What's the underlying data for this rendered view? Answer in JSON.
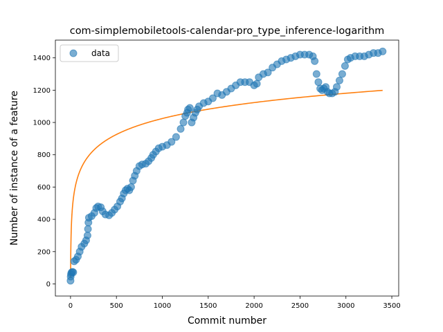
{
  "chart_data": {
    "type": "scatter",
    "title": "com-simplemobiletools-calendar-pro_type_inference-logarithm",
    "xlabel": "Commit number",
    "ylabel": "Number of instance of a feature",
    "xlim": [
      -165,
      3575
    ],
    "ylim": [
      -75,
      1510
    ],
    "xticks": [
      0,
      500,
      1000,
      1500,
      2000,
      2500,
      3000,
      3500
    ],
    "yticks": [
      0,
      200,
      400,
      600,
      800,
      1000,
      1200,
      1400
    ],
    "grid": false,
    "legend": {
      "placement": "top-left",
      "entries": [
        "data"
      ]
    },
    "colors": {
      "data": "#1f77b4",
      "fit": "#ff7f0e"
    },
    "series": [
      {
        "name": "data",
        "kind": "scatter",
        "points": [
          [
            0,
            20
          ],
          [
            2,
            45
          ],
          [
            5,
            60
          ],
          [
            10,
            70
          ],
          [
            20,
            75
          ],
          [
            30,
            72
          ],
          [
            40,
            140
          ],
          [
            60,
            150
          ],
          [
            80,
            170
          ],
          [
            100,
            200
          ],
          [
            120,
            230
          ],
          [
            150,
            250
          ],
          [
            170,
            270
          ],
          [
            185,
            300
          ],
          [
            190,
            340
          ],
          [
            195,
            380
          ],
          [
            200,
            410
          ],
          [
            230,
            420
          ],
          [
            260,
            440
          ],
          [
            280,
            470
          ],
          [
            300,
            480
          ],
          [
            330,
            475
          ],
          [
            350,
            450
          ],
          [
            380,
            430
          ],
          [
            420,
            425
          ],
          [
            450,
            440
          ],
          [
            480,
            460
          ],
          [
            510,
            480
          ],
          [
            540,
            510
          ],
          [
            560,
            530
          ],
          [
            580,
            560
          ],
          [
            600,
            580
          ],
          [
            620,
            590
          ],
          [
            640,
            580
          ],
          [
            660,
            600
          ],
          [
            680,
            640
          ],
          [
            700,
            670
          ],
          [
            720,
            700
          ],
          [
            750,
            730
          ],
          [
            780,
            740
          ],
          [
            820,
            745
          ],
          [
            850,
            760
          ],
          [
            880,
            780
          ],
          [
            900,
            800
          ],
          [
            930,
            820
          ],
          [
            960,
            840
          ],
          [
            1000,
            850
          ],
          [
            1050,
            860
          ],
          [
            1100,
            880
          ],
          [
            1150,
            910
          ],
          [
            1200,
            960
          ],
          [
            1230,
            1000
          ],
          [
            1250,
            1040
          ],
          [
            1270,
            1060
          ],
          [
            1280,
            1080
          ],
          [
            1300,
            1090
          ],
          [
            1320,
            1000
          ],
          [
            1340,
            1030
          ],
          [
            1360,
            1060
          ],
          [
            1380,
            1080
          ],
          [
            1400,
            1100
          ],
          [
            1450,
            1120
          ],
          [
            1500,
            1130
          ],
          [
            1550,
            1150
          ],
          [
            1600,
            1180
          ],
          [
            1650,
            1170
          ],
          [
            1700,
            1190
          ],
          [
            1750,
            1210
          ],
          [
            1800,
            1230
          ],
          [
            1850,
            1250
          ],
          [
            1900,
            1250
          ],
          [
            1950,
            1250
          ],
          [
            2000,
            1230
          ],
          [
            2030,
            1240
          ],
          [
            2050,
            1280
          ],
          [
            2100,
            1300
          ],
          [
            2150,
            1310
          ],
          [
            2200,
            1340
          ],
          [
            2250,
            1360
          ],
          [
            2300,
            1380
          ],
          [
            2350,
            1390
          ],
          [
            2400,
            1400
          ],
          [
            2450,
            1410
          ],
          [
            2500,
            1420
          ],
          [
            2550,
            1420
          ],
          [
            2600,
            1420
          ],
          [
            2640,
            1410
          ],
          [
            2660,
            1380
          ],
          [
            2680,
            1300
          ],
          [
            2700,
            1250
          ],
          [
            2720,
            1210
          ],
          [
            2740,
            1200
          ],
          [
            2760,
            1210
          ],
          [
            2780,
            1220
          ],
          [
            2800,
            1190
          ],
          [
            2820,
            1180
          ],
          [
            2850,
            1180
          ],
          [
            2880,
            1190
          ],
          [
            2900,
            1220
          ],
          [
            2930,
            1260
          ],
          [
            2960,
            1300
          ],
          [
            2990,
            1350
          ],
          [
            3020,
            1390
          ],
          [
            3050,
            1400
          ],
          [
            3100,
            1410
          ],
          [
            3150,
            1410
          ],
          [
            3200,
            1410
          ],
          [
            3250,
            1420
          ],
          [
            3300,
            1430
          ],
          [
            3350,
            1430
          ],
          [
            3400,
            1440
          ]
        ]
      },
      {
        "name": "",
        "kind": "line",
        "model": "a + b*ln(x)",
        "a": 40,
        "b": 142.5,
        "x_range": [
          1,
          3400
        ]
      }
    ]
  }
}
